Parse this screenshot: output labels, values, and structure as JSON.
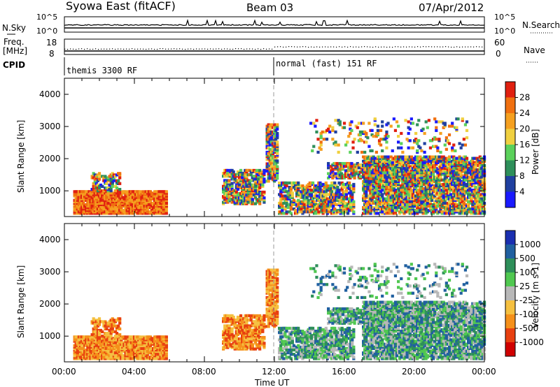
{
  "header": {
    "station": "Syowa East (fitACF)",
    "beam": "Beam 03",
    "date": "07/Apr/2012"
  },
  "nsky_panel": {
    "left_label": "N.Sky",
    "right_label": "N.Search",
    "left_ticks": [
      "10^5",
      "10^0"
    ],
    "right_ticks": [
      "10^5",
      "10^0"
    ]
  },
  "freq_panel": {
    "left_label_line1": "Freq.",
    "left_label_line2": "[MHz]",
    "right_label": "Nave",
    "left_ticks": [
      "18",
      "8"
    ],
    "right_ticks": [
      "60",
      "0"
    ]
  },
  "cpid": {
    "label": "CPID",
    "segments": [
      {
        "name": "themis 3300 RF",
        "start_hour": 0
      },
      {
        "name": "normal (fast) 151 RF",
        "start_hour": 12
      }
    ]
  },
  "x_axis": {
    "label": "Time UT",
    "tick_labels": [
      "00:00",
      "04:00",
      "08:00",
      "12:00",
      "16:00",
      "20:00",
      "00:00"
    ]
  },
  "colors": {
    "power_scale": [
      "#1a1aff",
      "#2040a0",
      "#2e8f5a",
      "#5bd15b",
      "#f0d040",
      "#f5a020",
      "#f07010",
      "#e02010"
    ],
    "velocity_scale": [
      "#1a2fb0",
      "#2060a0",
      "#2e8f5a",
      "#50c850",
      "#b8b8b8",
      "#f5c040",
      "#f5901a",
      "#e84010",
      "#d00000"
    ]
  },
  "chart_data": [
    {
      "type": "heatmap",
      "name": "power",
      "ylabel": "Slant Range [km]",
      "y_ticks": [
        "1000",
        "2000",
        "3000",
        "4000"
      ],
      "ylim": [
        200,
        4500
      ],
      "xlim": [
        0,
        24
      ],
      "colorbar_label": "Power [dB]",
      "colorbar_ticks": [
        "4",
        "8",
        "12",
        "16",
        "20",
        "24",
        "28"
      ],
      "colorbar_range": [
        0,
        32
      ]
    },
    {
      "type": "heatmap",
      "name": "velocity",
      "ylabel": "Slant Range [km]",
      "y_ticks": [
        "1000",
        "2000",
        "3000",
        "4000"
      ],
      "ylim": [
        200,
        4500
      ],
      "xlim": [
        0,
        24
      ],
      "colorbar_label": "Velocity [m s-1]",
      "colorbar_ticks": [
        "1000",
        "500",
        "100",
        "25",
        "-25",
        "-100",
        "-500",
        "-1000"
      ]
    }
  ]
}
